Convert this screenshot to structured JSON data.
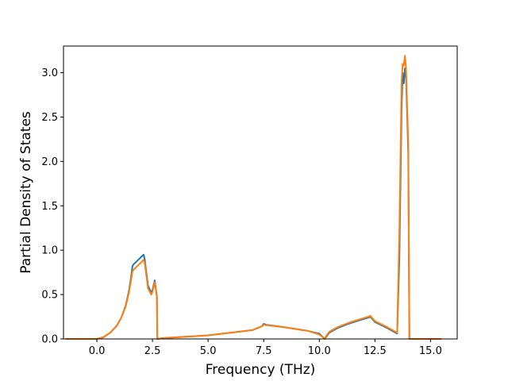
{
  "chart_data": {
    "type": "line",
    "title": "",
    "xlabel": "Frequency (THz)",
    "ylabel": "Partial Density of States",
    "xlim": [
      -1.5,
      16.2
    ],
    "ylim": [
      0.0,
      3.3
    ],
    "xticks": [
      0.0,
      2.5,
      5.0,
      7.5,
      10.0,
      12.5,
      15.0
    ],
    "xtick_labels": [
      "0.0",
      "2.5",
      "5.0",
      "7.5",
      "10.0",
      "12.5",
      "15.0"
    ],
    "yticks": [
      0.0,
      0.5,
      1.0,
      1.5,
      2.0,
      2.5,
      3.0
    ],
    "ytick_labels": [
      "0.0",
      "0.5",
      "1.0",
      "1.5",
      "2.0",
      "2.5",
      "3.0"
    ],
    "grid": false,
    "legend": "none",
    "series": [
      {
        "color": "#1f77b4",
        "x": [
          -1.4,
          0.0,
          0.3,
          0.6,
          0.9,
          1.1,
          1.3,
          1.45,
          1.55,
          1.6,
          1.65,
          2.1,
          2.15,
          2.3,
          2.45,
          2.5,
          2.6,
          2.7,
          2.72,
          3.0,
          5.0,
          7.0,
          7.4,
          7.5,
          7.6,
          8.5,
          9.5,
          10.0,
          10.25,
          10.3,
          10.45,
          10.8,
          11.3,
          11.8,
          12.2,
          12.3,
          12.5,
          13.0,
          13.5,
          13.6,
          13.7,
          13.75,
          13.8,
          13.85,
          13.9,
          14.0,
          14.05,
          14.1,
          15.5
        ],
        "y": [
          0.0,
          0.0,
          0.02,
          0.07,
          0.15,
          0.24,
          0.38,
          0.55,
          0.72,
          0.82,
          0.84,
          0.95,
          0.9,
          0.6,
          0.52,
          0.55,
          0.66,
          0.48,
          0.0,
          0.01,
          0.04,
          0.1,
          0.14,
          0.17,
          0.16,
          0.13,
          0.09,
          0.06,
          0.0,
          0.02,
          0.07,
          0.12,
          0.17,
          0.21,
          0.24,
          0.25,
          0.19,
          0.13,
          0.06,
          0.9,
          2.6,
          3.0,
          2.88,
          3.05,
          2.95,
          2.1,
          0.0,
          0.0,
          0.0
        ]
      },
      {
        "color": "#ff7f0e",
        "x": [
          -1.4,
          0.0,
          0.3,
          0.6,
          0.9,
          1.1,
          1.3,
          1.45,
          1.55,
          1.6,
          1.65,
          2.1,
          2.15,
          2.3,
          2.45,
          2.5,
          2.6,
          2.7,
          2.72,
          3.0,
          5.0,
          7.0,
          7.4,
          7.5,
          7.6,
          8.5,
          9.5,
          10.0,
          10.25,
          10.3,
          10.45,
          10.8,
          11.3,
          11.8,
          12.2,
          12.3,
          12.5,
          13.0,
          13.5,
          13.6,
          13.7,
          13.75,
          13.8,
          13.85,
          13.9,
          14.0,
          14.05,
          14.1,
          15.5
        ],
        "y": [
          0.0,
          0.0,
          0.02,
          0.07,
          0.15,
          0.24,
          0.37,
          0.53,
          0.68,
          0.76,
          0.78,
          0.89,
          0.86,
          0.57,
          0.5,
          0.53,
          0.64,
          0.47,
          0.0,
          0.01,
          0.04,
          0.1,
          0.14,
          0.16,
          0.155,
          0.13,
          0.09,
          0.05,
          0.0,
          0.03,
          0.08,
          0.13,
          0.18,
          0.22,
          0.25,
          0.26,
          0.2,
          0.14,
          0.07,
          1.2,
          2.9,
          3.1,
          3.08,
          3.19,
          3.05,
          2.2,
          0.0,
          0.0,
          0.0
        ]
      }
    ]
  }
}
